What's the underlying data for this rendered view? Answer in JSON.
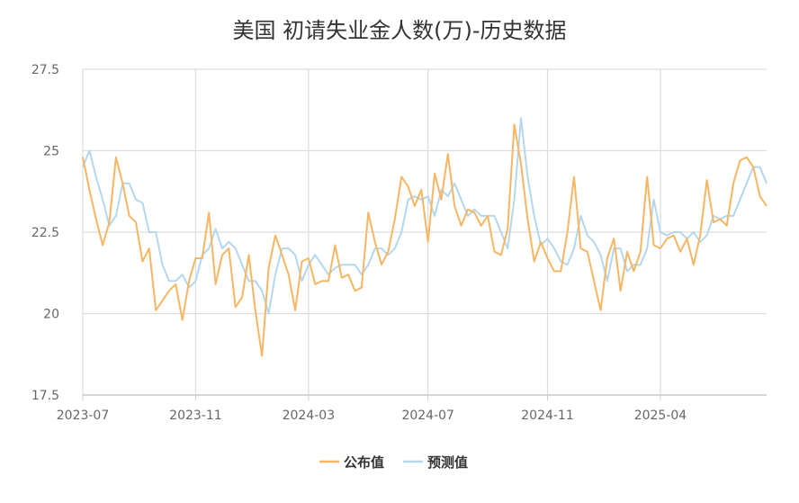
{
  "chart_data": {
    "type": "line",
    "title": "美国 初请失业金人数(万)-历史数据",
    "xlabel": "",
    "ylabel": "",
    "ylim": [
      17.5,
      27.5
    ],
    "y_ticks": [
      "17.5",
      "20",
      "22.5",
      "25",
      "27.5"
    ],
    "x_ticks": [
      "2023-07",
      "2023-11",
      "2024-03",
      "2024-07",
      "2024-11",
      "2025-04"
    ],
    "grid": true,
    "legend_position": "bottom-center",
    "colors": {
      "published": "#F6B664",
      "forecast": "#B5D7EE",
      "axis": "#CCCCCC",
      "grid": "#DDDDDD"
    },
    "series": [
      {
        "name": "公布值",
        "values": [
          24.8,
          23.8,
          22.9,
          22.1,
          22.8,
          24.8,
          24.0,
          23.0,
          22.8,
          21.6,
          22.0,
          20.1,
          20.4,
          20.7,
          20.9,
          19.8,
          21.0,
          21.7,
          21.7,
          23.1,
          20.9,
          21.8,
          22.0,
          20.2,
          20.5,
          21.8,
          20.1,
          18.7,
          21.4,
          22.4,
          21.8,
          21.2,
          20.1,
          21.6,
          21.7,
          20.9,
          21.0,
          21.0,
          22.1,
          21.1,
          21.2,
          20.7,
          20.8,
          23.1,
          22.2,
          21.5,
          21.9,
          22.9,
          24.2,
          23.9,
          23.3,
          23.8,
          22.2,
          24.3,
          23.5,
          24.9,
          23.3,
          22.7,
          23.2,
          23.1,
          22.7,
          23.0,
          21.9,
          21.8,
          22.6,
          25.8,
          24.6,
          22.9,
          21.6,
          22.2,
          21.7,
          21.3,
          21.3,
          22.5,
          24.2,
          22.0,
          21.9,
          21.0,
          20.1,
          21.7,
          22.3,
          20.7,
          21.9,
          21.3,
          21.9,
          24.2,
          22.1,
          22.0,
          22.3,
          22.4,
          21.9,
          22.3,
          21.5,
          22.4,
          24.1,
          22.8,
          22.9,
          22.7,
          24.0,
          24.7,
          24.8,
          24.5,
          23.6,
          23.3
        ]
      },
      {
        "name": "预测值",
        "values": [
          24.5,
          25.0,
          24.2,
          23.5,
          22.7,
          23.0,
          24.0,
          24.0,
          23.5,
          23.4,
          22.5,
          22.5,
          21.5,
          21.0,
          21.0,
          21.2,
          20.8,
          21.0,
          21.8,
          22.0,
          22.6,
          22.0,
          22.2,
          22.0,
          21.5,
          21.0,
          21.0,
          20.7,
          20.0,
          21.2,
          22.0,
          22.0,
          21.8,
          21.0,
          21.5,
          21.8,
          21.5,
          21.2,
          21.4,
          21.5,
          21.5,
          21.5,
          21.2,
          21.5,
          22.0,
          22.0,
          21.8,
          22.0,
          22.5,
          23.5,
          23.6,
          23.5,
          23.6,
          23.0,
          23.8,
          23.6,
          24.0,
          23.5,
          23.0,
          23.2,
          23.0,
          23.0,
          23.0,
          22.5,
          22.0,
          23.5,
          26.0,
          24.2,
          23.0,
          22.1,
          22.3,
          22.0,
          21.6,
          21.5,
          22.0,
          23.0,
          22.4,
          22.2,
          21.8,
          21.0,
          22.0,
          22.0,
          21.3,
          21.5,
          21.5,
          22.0,
          23.5,
          22.5,
          22.4,
          22.5,
          22.5,
          22.3,
          22.5,
          22.2,
          22.4,
          23.0,
          22.9,
          23.0,
          23.0,
          23.5,
          24.0,
          24.5,
          24.5,
          24.0
        ]
      }
    ]
  }
}
